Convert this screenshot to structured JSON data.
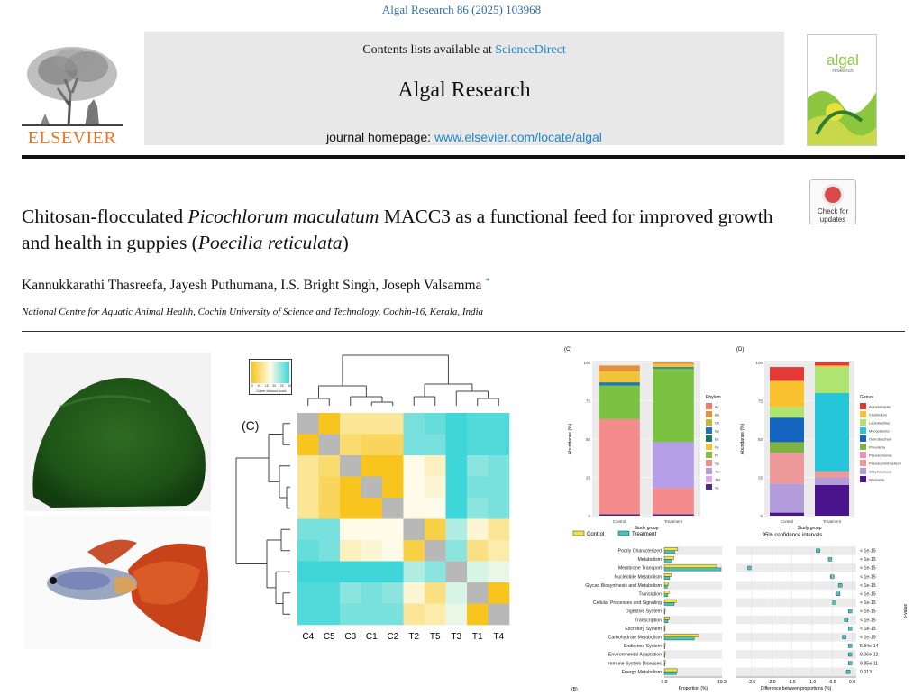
{
  "header": {
    "journal_ref": "Algal Research 86 (2025) 103968",
    "contents_prefix": "Contents lists available at ",
    "contents_link": "ScienceDirect",
    "journal_title": "Algal Research",
    "homepage_prefix": "journal homepage: ",
    "homepage_link": "www.elsevier.com/locate/algal",
    "publisher": "ELSEVIER",
    "cover_title": "algal",
    "cover_subtitle": "research"
  },
  "check_for_updates": {
    "line1": "Check for",
    "line2": "updates"
  },
  "article": {
    "title_p1": "Chitosan-flocculated ",
    "title_i1": "Picochlorum maculatum",
    "title_p2": " MACC3 as a functional feed for improved growth and health in guppies (",
    "title_i2": "Poecilia reticulata",
    "title_p3": ")",
    "authors": [
      "Kannukkarathi Thasreefa",
      "Jayesh Puthumana",
      "I.S. Bright Singh",
      "Joseph Valsamma"
    ],
    "corresponding_mark": "*",
    "affiliation": "National Centre for Aquatic Animal Health, Cochin University of Science and Technology, Cochin-16, Kerala, India"
  },
  "heatmap": {
    "panel_label": "(C)",
    "scale_ticks": [
      "0",
      "10",
      "15",
      "20",
      "25",
      "30"
    ],
    "scale_caption": "Gower distance scale",
    "labels": [
      "C4",
      "C5",
      "C3",
      "C1",
      "C2",
      "T2",
      "T5",
      "T3",
      "T1",
      "T4"
    ],
    "low_color": "#f7c51e",
    "mid_color": "#fefbe8",
    "high_color": "#3ed6d8",
    "diag_color": "#b8b8b8"
  },
  "phylum_chart": {
    "panel_label": "(C)",
    "ylabel": "Abundance (%)",
    "xlabel": "Study group",
    "yticks": [
      "100",
      "75",
      "50",
      "25",
      "0"
    ],
    "legend_title": "Phylum",
    "legend": [
      {
        "name": "Ac",
        "color": "#f8766d"
      },
      {
        "name": "Ba",
        "color": "#e69138"
      },
      {
        "name": "Ch",
        "color": "#c5b733"
      },
      {
        "name": "De",
        "color": "#1f77b4"
      },
      {
        "name": "Ex",
        "color": "#1a7a6a"
      },
      {
        "name": "Fe",
        "color": "#f2c335"
      },
      {
        "name": "Pr",
        "color": "#7cc242"
      },
      {
        "name": "Sp",
        "color": "#f58c8c"
      },
      {
        "name": "Ten",
        "color": "#b59ee6"
      },
      {
        "name": "TM",
        "color": "#e0a6e6"
      },
      {
        "name": "Ve",
        "color": "#4b2a8a"
      }
    ]
  },
  "genus_chart": {
    "panel_label": "(D)",
    "ylabel": "Abundance (%)",
    "xlabel": "Study group",
    "yticks": [
      "100",
      "75",
      "50",
      "25",
      "0"
    ],
    "legend_title": "Genus",
    "legend": [
      {
        "name": "Acinetobacter",
        "color": "#e53935"
      },
      {
        "name": "Clostridium",
        "color": "#fbc02d"
      },
      {
        "name": "Lactobacillus",
        "color": "#aee571"
      },
      {
        "name": "Mycoplasma",
        "color": "#26c6da"
      },
      {
        "name": "Ochrobactrum",
        "color": "#1565c0"
      },
      {
        "name": "Prevotella",
        "color": "#7cb342"
      },
      {
        "name": "Pseudomonas",
        "color": "#f48fb1"
      },
      {
        "name": "Pseudochrobactrum",
        "color": "#ef9a9a"
      },
      {
        "name": "Streptococcus",
        "color": "#b39ddb"
      },
      {
        "name": "Weissella",
        "color": "#4a148c"
      }
    ]
  },
  "group_labels": [
    "Control",
    "Treatment"
  ],
  "chart_data": [
    {
      "type": "bar",
      "panel": "(C)",
      "ylabel": "Abundance (%)",
      "xlabel": "Study group",
      "categories": [
        "Control",
        "Treatment"
      ],
      "ylim": [
        0,
        100
      ],
      "stacked": true,
      "series": [
        {
          "name": "Ve",
          "values": [
            1,
            1
          ]
        },
        {
          "name": "Sp",
          "values": [
            62,
            17
          ]
        },
        {
          "name": "Ten",
          "values": [
            0,
            30
          ]
        },
        {
          "name": "Pr",
          "values": [
            22,
            48
          ]
        },
        {
          "name": "De",
          "values": [
            2,
            1
          ]
        },
        {
          "name": "Fe",
          "values": [
            7,
            2
          ]
        },
        {
          "name": "Ba",
          "values": [
            4,
            1
          ]
        }
      ]
    },
    {
      "type": "bar",
      "panel": "(D)",
      "ylabel": "Abundance (%)",
      "xlabel": "Study group",
      "categories": [
        "Control",
        "Treatment"
      ],
      "ylim": [
        0,
        100
      ],
      "stacked": true,
      "series": [
        {
          "name": "Weissella",
          "values": [
            2,
            20
          ]
        },
        {
          "name": "Streptococcus",
          "values": [
            19,
            5
          ]
        },
        {
          "name": "Pseudochrobactrum",
          "values": [
            20,
            4
          ]
        },
        {
          "name": "Prevotella",
          "values": [
            7,
            0
          ]
        },
        {
          "name": "Ochrobactrum",
          "values": [
            16,
            0
          ]
        },
        {
          "name": "Mycoplasma",
          "values": [
            0,
            51
          ]
        },
        {
          "name": "Lactobacillus",
          "values": [
            7,
            17
          ]
        },
        {
          "name": "Clostridium",
          "values": [
            17,
            1
          ]
        },
        {
          "name": "Acinetobacter",
          "values": [
            9,
            2
          ]
        }
      ]
    },
    {
      "type": "bar",
      "panel": "(B)",
      "categories": [
        "Poorly Characterized",
        "Metabolism",
        "Membrane Transport",
        "Nucleotide Metabolism",
        "Glycan Biosynthesis and Metabolism",
        "Translation",
        "Cellular Processes and Signaling",
        "Digestive System",
        "Transcription",
        "Excretory System",
        "Carbohydrate Metabolism",
        "Endocrine System",
        "Environmental Adaptation",
        "Immune System Diseases",
        "Energy Metabolism"
      ],
      "xlabel": "Proportion (%)",
      "xticks": [
        "0.0",
        "19.3"
      ],
      "xlim": [
        0,
        19.3
      ],
      "series": [
        {
          "name": "Control",
          "values": [
            4.5,
            3.2,
            17.5,
            2.4,
            1.4,
            1.6,
            4.0,
            0.3,
            1.7,
            0.3,
            11.5,
            0.3,
            0.3,
            0.3,
            4.3
          ]
        },
        {
          "name": "Treatment",
          "values": [
            3.5,
            2.6,
            19.0,
            1.8,
            1.0,
            1.1,
            3.3,
            0.2,
            1.2,
            0.2,
            10.0,
            0.2,
            0.2,
            0.2,
            4.0
          ]
        }
      ],
      "legend": [
        "Control",
        "Treatment"
      ],
      "series_colors": [
        "#f2e635",
        "#3ec8c4"
      ]
    },
    {
      "type": "scatter",
      "title": "95% confidence intervals",
      "xlabel": "Difference between proportions (%)",
      "xticks": [
        "-2.5",
        "-2.0",
        "-1.5",
        "-1.0",
        "-0.5",
        "0.0"
      ],
      "xlim": [
        -2.9,
        0.1
      ],
      "categories": [
        "Poorly Characterized",
        "Metabolism",
        "Membrane Transport",
        "Nucleotide Metabolism",
        "Glycan Biosynthesis and Metabolism",
        "Translation",
        "Cellular Processes and Signaling",
        "Digestive System",
        "Transcription",
        "Excretory System",
        "Carbohydrate Metabolism",
        "Endocrine System",
        "Environmental Adaptation",
        "Immune System Diseases",
        "Energy Metabolism"
      ],
      "values": [
        -0.85,
        -0.55,
        -2.55,
        -0.5,
        -0.3,
        -0.35,
        -0.45,
        -0.05,
        -0.15,
        -0.05,
        -0.2,
        -0.05,
        -0.05,
        -0.05,
        -0.1
      ],
      "p_values": [
        "< 1e-15",
        "< 1e-15",
        "< 1e-15",
        "< 1e-15",
        "< 1e-15",
        "< 1e-15",
        "< 1e-15",
        "< 1e-15",
        "< 1e-15",
        "< 1e-15",
        "< 1e-15",
        "5.84e-14",
        "8.06e-12",
        "9.85e-11",
        "0.013"
      ],
      "p_label": "p-value"
    }
  ],
  "panel_b_label": "(B)"
}
